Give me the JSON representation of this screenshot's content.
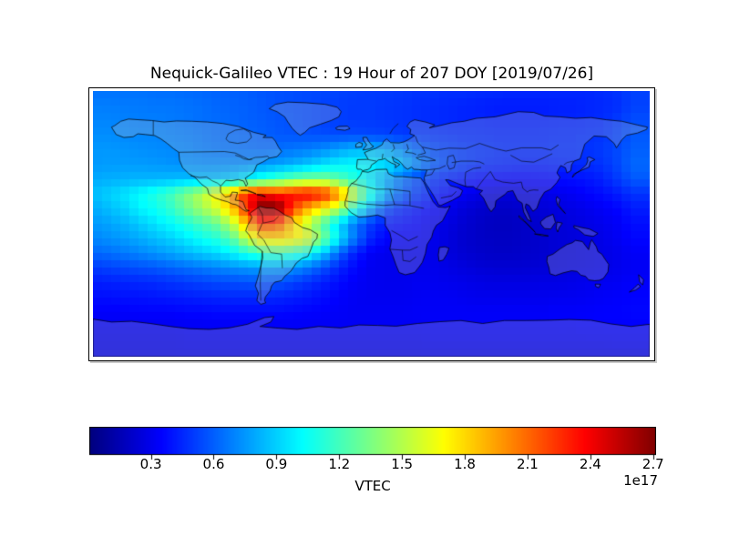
{
  "title": "Nequick-Galileo VTEC : 19 Hour of 207 DOY [2019/07/26]",
  "chart_data": {
    "type": "heatmap",
    "title": "Nequick-Galileo VTEC : 19 Hour of 207 DOY [2019/07/26]",
    "description": "Global VTEC map on equirectangular world projection with coastlines and country borders overlaid",
    "colormap": "jet",
    "vmin": 0.01,
    "vmax": 2.71,
    "value_units": "1e17 electrons/m^2",
    "lon_range": [
      -180,
      180
    ],
    "lat_range": [
      -90,
      90
    ],
    "grid": {
      "lat_start": 90,
      "lat_step": -10,
      "lon_start": -180,
      "lon_step": 10,
      "rows": 19,
      "cols": 36
    },
    "values": [
      [
        0.65,
        0.65,
        0.65,
        0.65,
        0.64,
        0.64,
        0.63,
        0.62,
        0.61,
        0.6,
        0.59,
        0.57,
        0.56,
        0.55,
        0.54,
        0.53,
        0.52,
        0.51,
        0.5,
        0.5,
        0.49,
        0.48,
        0.48,
        0.47,
        0.47,
        0.46,
        0.46,
        0.45,
        0.45,
        0.45,
        0.45,
        0.45,
        0.45,
        0.46,
        0.48,
        0.52
      ],
      [
        0.68,
        0.68,
        0.67,
        0.67,
        0.66,
        0.66,
        0.65,
        0.64,
        0.62,
        0.61,
        0.6,
        0.58,
        0.56,
        0.55,
        0.54,
        0.52,
        0.51,
        0.5,
        0.5,
        0.49,
        0.48,
        0.47,
        0.46,
        0.45,
        0.44,
        0.43,
        0.42,
        0.42,
        0.42,
        0.42,
        0.43,
        0.43,
        0.44,
        0.45,
        0.47,
        0.52
      ],
      [
        0.7,
        0.7,
        0.69,
        0.68,
        0.68,
        0.67,
        0.66,
        0.64,
        0.63,
        0.62,
        0.6,
        0.59,
        0.57,
        0.56,
        0.54,
        0.52,
        0.51,
        0.5,
        0.5,
        0.49,
        0.48,
        0.47,
        0.46,
        0.45,
        0.44,
        0.44,
        0.43,
        0.43,
        0.43,
        0.43,
        0.44,
        0.44,
        0.45,
        0.46,
        0.5,
        0.55
      ],
      [
        0.72,
        0.72,
        0.71,
        0.7,
        0.7,
        0.69,
        0.68,
        0.66,
        0.64,
        0.63,
        0.62,
        0.6,
        0.58,
        0.57,
        0.56,
        0.55,
        0.54,
        0.54,
        0.53,
        0.52,
        0.5,
        0.49,
        0.48,
        0.47,
        0.46,
        0.46,
        0.45,
        0.45,
        0.45,
        0.45,
        0.46,
        0.46,
        0.47,
        0.48,
        0.52,
        0.58
      ],
      [
        0.75,
        0.75,
        0.74,
        0.73,
        0.72,
        0.71,
        0.7,
        0.68,
        0.66,
        0.65,
        0.64,
        0.63,
        0.64,
        0.66,
        0.68,
        0.72,
        0.78,
        0.83,
        0.84,
        0.8,
        0.72,
        0.62,
        0.55,
        0.52,
        0.5,
        0.48,
        0.47,
        0.46,
        0.46,
        0.46,
        0.47,
        0.47,
        0.48,
        0.5,
        0.54,
        0.6
      ],
      [
        0.75,
        0.76,
        0.76,
        0.76,
        0.75,
        0.74,
        0.73,
        0.72,
        0.72,
        0.72,
        0.73,
        0.75,
        0.78,
        0.82,
        0.88,
        0.95,
        1.0,
        1.02,
        1.0,
        0.95,
        0.85,
        0.72,
        0.6,
        0.54,
        0.5,
        0.47,
        0.45,
        0.44,
        0.43,
        0.43,
        0.44,
        0.45,
        0.46,
        0.48,
        0.54,
        0.62
      ],
      [
        0.8,
        0.81,
        0.82,
        0.83,
        0.83,
        0.84,
        0.85,
        0.85,
        0.86,
        0.9,
        1.0,
        1.1,
        1.2,
        1.3,
        1.35,
        1.35,
        1.25,
        1.1,
        0.95,
        0.8,
        0.65,
        0.55,
        0.48,
        0.43,
        0.4,
        0.37,
        0.36,
        0.35,
        0.35,
        0.36,
        0.37,
        0.38,
        0.4,
        0.43,
        0.5,
        0.58
      ],
      [
        0.85,
        0.9,
        0.95,
        1.02,
        1.1,
        1.2,
        1.35,
        1.5,
        1.7,
        1.95,
        2.3,
        2.4,
        2.3,
        2.35,
        2.4,
        2.3,
        2.0,
        1.5,
        1.1,
        0.8,
        0.6,
        0.5,
        0.42,
        0.37,
        0.32,
        0.28,
        0.25,
        0.25,
        0.26,
        0.28,
        0.3,
        0.32,
        0.35,
        0.38,
        0.42,
        0.48
      ],
      [
        0.8,
        0.85,
        0.9,
        1.0,
        1.05,
        1.15,
        1.3,
        1.45,
        1.6,
        1.85,
        2.3,
        2.75,
        2.7,
        2.2,
        1.9,
        1.7,
        1.5,
        1.1,
        0.8,
        0.55,
        0.45,
        0.4,
        0.35,
        0.3,
        0.25,
        0.22,
        0.2,
        0.2,
        0.22,
        0.24,
        0.26,
        0.28,
        0.3,
        0.33,
        0.36,
        0.42
      ],
      [
        0.75,
        0.78,
        0.82,
        0.88,
        0.95,
        1.02,
        1.1,
        1.2,
        1.3,
        1.5,
        1.9,
        2.25,
        2.15,
        1.8,
        1.5,
        1.2,
        0.9,
        0.65,
        0.5,
        0.4,
        0.38,
        0.35,
        0.3,
        0.27,
        0.23,
        0.2,
        0.18,
        0.18,
        0.2,
        0.22,
        0.24,
        0.26,
        0.28,
        0.3,
        0.33,
        0.38
      ],
      [
        0.7,
        0.73,
        0.76,
        0.8,
        0.85,
        0.9,
        0.97,
        1.05,
        1.12,
        1.25,
        1.55,
        1.78,
        1.8,
        1.75,
        1.6,
        1.3,
        0.95,
        0.65,
        0.45,
        0.35,
        0.33,
        0.32,
        0.3,
        0.26,
        0.22,
        0.2,
        0.19,
        0.19,
        0.2,
        0.22,
        0.24,
        0.25,
        0.27,
        0.29,
        0.32,
        0.36
      ],
      [
        0.62,
        0.64,
        0.67,
        0.7,
        0.74,
        0.78,
        0.83,
        0.88,
        0.93,
        1.0,
        1.1,
        1.18,
        1.2,
        1.15,
        1.05,
        0.85,
        0.6,
        0.42,
        0.33,
        0.3,
        0.3,
        0.3,
        0.29,
        0.26,
        0.23,
        0.21,
        0.2,
        0.2,
        0.21,
        0.22,
        0.24,
        0.25,
        0.26,
        0.28,
        0.3,
        0.33
      ],
      [
        0.5,
        0.52,
        0.54,
        0.56,
        0.58,
        0.61,
        0.64,
        0.67,
        0.7,
        0.73,
        0.76,
        0.78,
        0.78,
        0.74,
        0.66,
        0.55,
        0.44,
        0.36,
        0.31,
        0.3,
        0.3,
        0.3,
        0.3,
        0.28,
        0.26,
        0.24,
        0.23,
        0.23,
        0.23,
        0.24,
        0.25,
        0.26,
        0.27,
        0.28,
        0.3,
        0.32
      ],
      [
        0.42,
        0.43,
        0.44,
        0.45,
        0.46,
        0.48,
        0.5,
        0.52,
        0.54,
        0.55,
        0.56,
        0.57,
        0.56,
        0.52,
        0.47,
        0.42,
        0.37,
        0.33,
        0.31,
        0.3,
        0.3,
        0.31,
        0.31,
        0.3,
        0.29,
        0.28,
        0.27,
        0.27,
        0.27,
        0.28,
        0.28,
        0.29,
        0.3,
        0.31,
        0.32,
        0.34
      ],
      [
        0.38,
        0.38,
        0.39,
        0.39,
        0.4,
        0.41,
        0.42,
        0.43,
        0.44,
        0.45,
        0.45,
        0.45,
        0.44,
        0.42,
        0.4,
        0.37,
        0.34,
        0.32,
        0.31,
        0.31,
        0.31,
        0.32,
        0.32,
        0.32,
        0.31,
        0.3,
        0.3,
        0.3,
        0.3,
        0.3,
        0.31,
        0.31,
        0.32,
        0.33,
        0.34,
        0.35
      ],
      [
        0.34,
        0.34,
        0.34,
        0.35,
        0.35,
        0.35,
        0.36,
        0.36,
        0.37,
        0.37,
        0.37,
        0.37,
        0.37,
        0.36,
        0.35,
        0.34,
        0.33,
        0.32,
        0.32,
        0.32,
        0.32,
        0.33,
        0.33,
        0.33,
        0.33,
        0.33,
        0.33,
        0.33,
        0.33,
        0.33,
        0.34,
        0.34,
        0.34,
        0.35,
        0.35,
        0.36
      ],
      [
        0.31,
        0.31,
        0.31,
        0.31,
        0.31,
        0.31,
        0.32,
        0.32,
        0.32,
        0.32,
        0.32,
        0.32,
        0.32,
        0.32,
        0.32,
        0.32,
        0.32,
        0.32,
        0.32,
        0.32,
        0.32,
        0.32,
        0.33,
        0.33,
        0.33,
        0.33,
        0.33,
        0.33,
        0.33,
        0.33,
        0.33,
        0.33,
        0.34,
        0.34,
        0.34,
        0.34
      ],
      [
        0.29,
        0.29,
        0.29,
        0.29,
        0.29,
        0.29,
        0.3,
        0.3,
        0.3,
        0.3,
        0.3,
        0.3,
        0.3,
        0.3,
        0.3,
        0.3,
        0.3,
        0.3,
        0.3,
        0.3,
        0.3,
        0.3,
        0.31,
        0.31,
        0.31,
        0.31,
        0.31,
        0.31,
        0.31,
        0.31,
        0.31,
        0.31,
        0.31,
        0.31,
        0.32,
        0.32
      ],
      [
        0.28,
        0.28,
        0.28,
        0.28,
        0.28,
        0.28,
        0.28,
        0.28,
        0.28,
        0.28,
        0.28,
        0.28,
        0.28,
        0.28,
        0.28,
        0.28,
        0.28,
        0.28,
        0.28,
        0.28,
        0.28,
        0.28,
        0.28,
        0.28,
        0.28,
        0.28,
        0.28,
        0.28,
        0.28,
        0.28,
        0.28,
        0.28,
        0.28,
        0.28,
        0.28,
        0.28
      ]
    ],
    "colorbar": {
      "label": "VTEC",
      "exponent_label": "1e17",
      "tick_values": [
        0.3,
        0.6,
        0.9,
        1.2,
        1.5,
        1.8,
        2.1,
        2.4,
        2.7
      ],
      "tick_labels": [
        "0.3",
        "0.6",
        "0.9",
        "1.2",
        "1.5",
        "1.8",
        "2.1",
        "2.4",
        "2.7"
      ],
      "orientation": "horizontal"
    }
  }
}
